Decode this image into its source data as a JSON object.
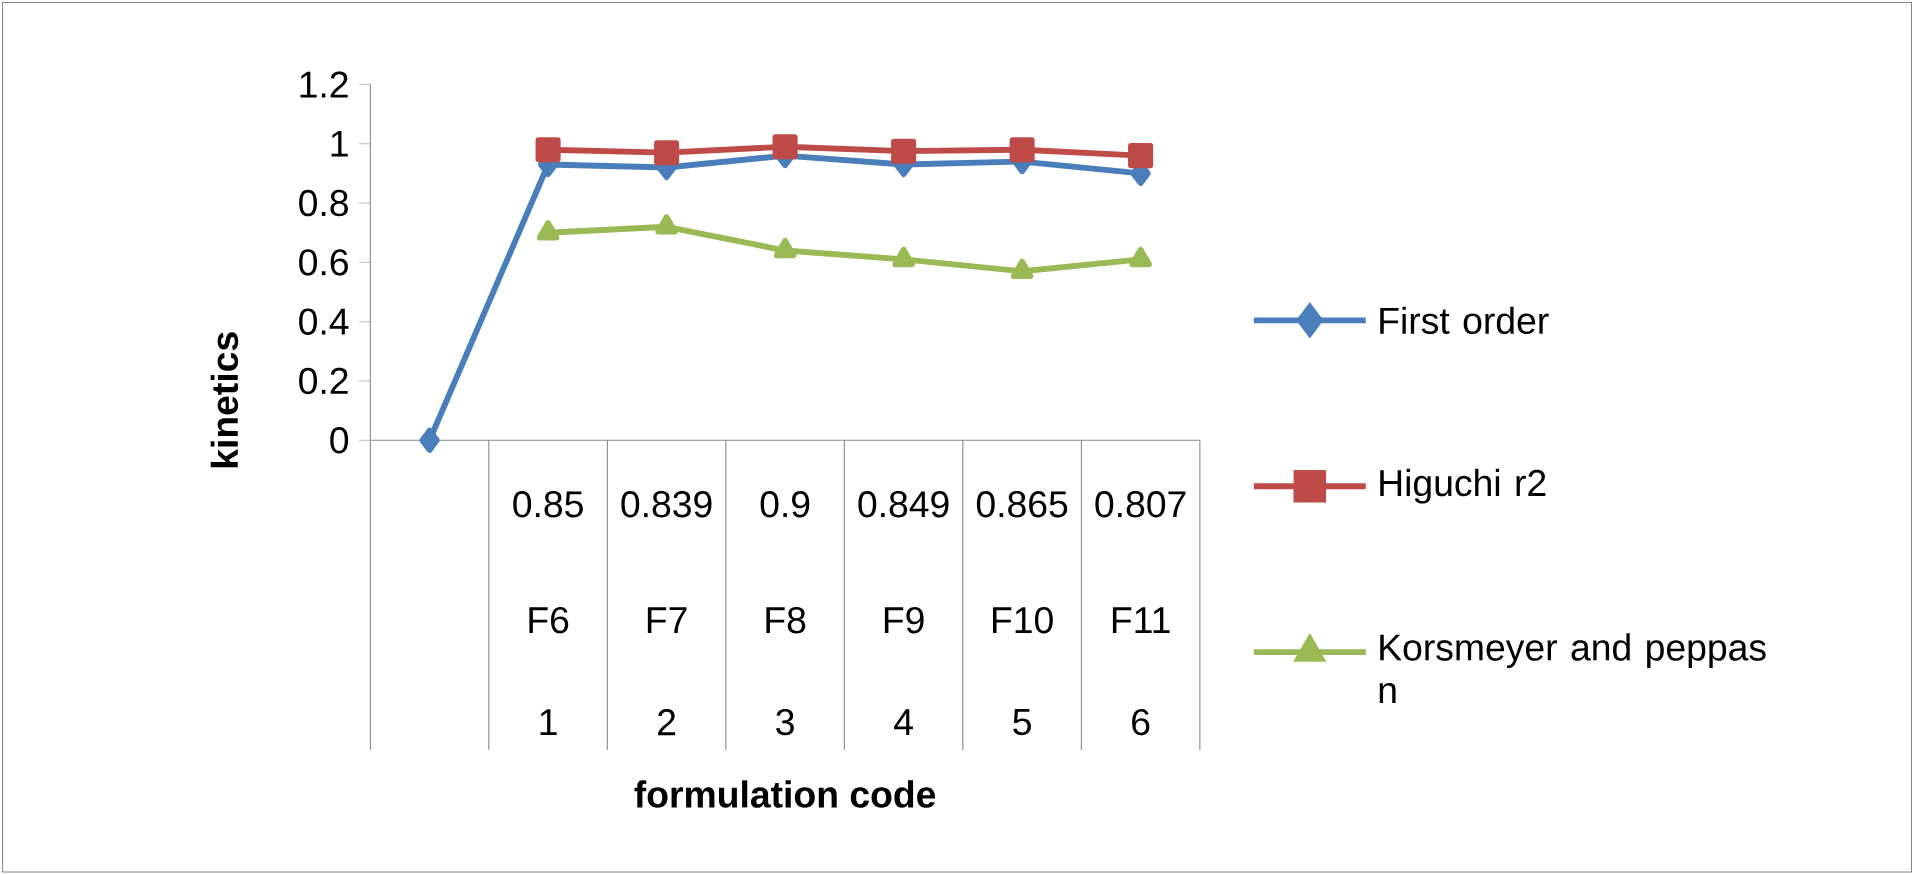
{
  "chart_data": {
    "type": "line",
    "xlabel": "formulation code",
    "ylabel": "kinetics",
    "categories": [
      null,
      "F6",
      "F7",
      "F8",
      "F9",
      "F10",
      "F11"
    ],
    "annotations": [
      "0.85",
      "0.839",
      "0.9",
      "0.849",
      "0.865",
      "0.807",
      "1",
      "2",
      "3",
      "4",
      "5",
      "6"
    ],
    "ylim": [
      0,
      1.2
    ],
    "yticks": [
      0,
      0.2,
      0.4,
      0.6,
      0.8,
      1,
      1.2
    ],
    "grid": false,
    "legend": "right",
    "line_style": "solid",
    "series": [
      {
        "name": "First order",
        "color": "#4a7ebb",
        "marker": "diamond",
        "values": [
          0,
          0.93,
          0.92,
          0.96,
          0.93,
          0.94,
          0.9
        ]
      },
      {
        "name": "Higuchi r2",
        "color": "#be4b48",
        "marker": "square",
        "values": [
          null,
          0.98,
          0.97,
          0.99,
          0.975,
          0.98,
          0.96
        ]
      },
      {
        "name": "Korsmeyer and peppas n",
        "color": "#98b954",
        "marker": "triangle",
        "values": [
          null,
          0.7,
          0.72,
          0.64,
          0.61,
          0.57,
          0.61
        ]
      }
    ]
  }
}
